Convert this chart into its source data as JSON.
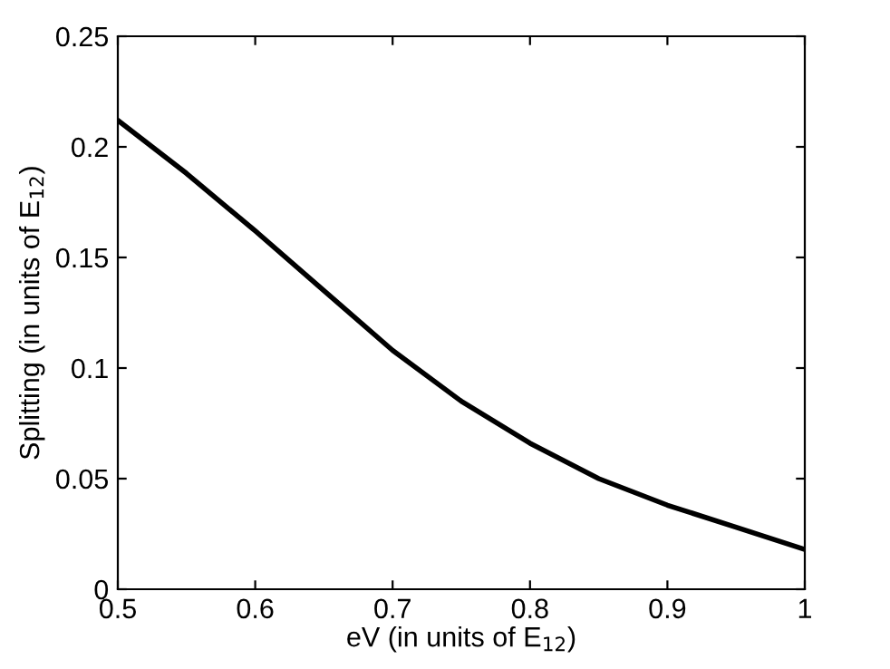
{
  "chart_data": {
    "type": "line",
    "xlabel": "eV (in units of E$_{12}$)",
    "ylabel": "Splitting (in units of E$_{12}$)",
    "x": [
      0.5,
      0.55,
      0.6,
      0.65,
      0.7,
      0.75,
      0.8,
      0.85,
      0.9,
      0.95,
      1
    ],
    "series": [
      {
        "color": "#000000",
        "values": [
          0.212,
          0.188,
          0.162,
          0.135,
          0.108,
          0.085,
          0.066,
          0.05,
          0.038,
          0.028,
          0.018
        ]
      }
    ],
    "xlim": [
      0.5,
      1
    ],
    "ylim": [
      0,
      0.25
    ],
    "xticks": [
      0.5,
      0.6,
      0.7,
      0.8,
      0.9,
      1
    ],
    "yticks": [
      0,
      0.05,
      0.1,
      0.15,
      0.2,
      0.25
    ],
    "grid": false,
    "marker": "none",
    "line_style": "solid"
  }
}
